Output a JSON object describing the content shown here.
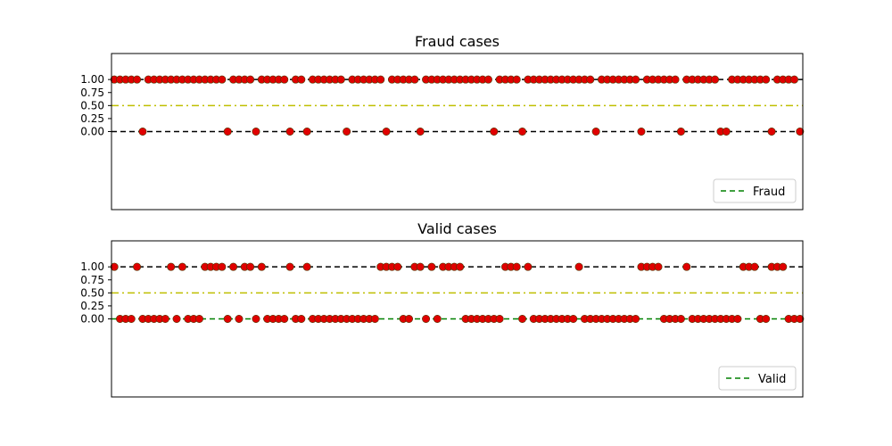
{
  "chart_data": [
    {
      "type": "scatter",
      "title": "Fraud cases",
      "xlabel": "",
      "ylabel": "",
      "ylim": [
        -1.5,
        1.5
      ],
      "xlim": [
        0,
        120
      ],
      "x_ticks_visible": false,
      "yticks": [
        "0.00",
        "0.25",
        "0.50",
        "0.75",
        "1.00"
      ],
      "ytick_values": [
        0,
        0.25,
        0.5,
        0.75,
        1
      ],
      "grid": false,
      "legend_location": "lower right",
      "legend": [
        {
          "label": "Fraud",
          "style": "dashed",
          "color": "#008000"
        }
      ],
      "reference_lines": [
        {
          "y": 1,
          "style": "dashed",
          "color": "#000000"
        },
        {
          "y": 0.5,
          "style": "dashdot",
          "color": "#bfbf00"
        },
        {
          "y": 0,
          "style": "dashed",
          "color": "#000000"
        }
      ],
      "truth_line_color": "#008000",
      "marker_color": "#e00000",
      "values": [
        1,
        1,
        1,
        1,
        1,
        0,
        1,
        1,
        1,
        1,
        1,
        1,
        1,
        1,
        1,
        1,
        1,
        1,
        1,
        1,
        0,
        1,
        1,
        1,
        1,
        0,
        1,
        1,
        1,
        1,
        1,
        0,
        1,
        1,
        0,
        1,
        1,
        1,
        1,
        1,
        1,
        0,
        1,
        1,
        1,
        1,
        1,
        1,
        0,
        1,
        1,
        1,
        1,
        1,
        0,
        1,
        1,
        1,
        1,
        1,
        1,
        1,
        1,
        1,
        1,
        1,
        1,
        0,
        1,
        1,
        1,
        1,
        0,
        1,
        1,
        1,
        1,
        1,
        1,
        1,
        1,
        1,
        1,
        1,
        1,
        0,
        1,
        1,
        1,
        1,
        1,
        1,
        1,
        0,
        1,
        1,
        1,
        1,
        1,
        1,
        0,
        1,
        1,
        1,
        1,
        1,
        1,
        0,
        0,
        1,
        1,
        1,
        1,
        1,
        1,
        1,
        0,
        1,
        1,
        1,
        1,
        0
      ]
    },
    {
      "type": "scatter",
      "title": "Valid cases",
      "xlabel": "",
      "ylabel": "",
      "ylim": [
        -1.5,
        1.5
      ],
      "xlim": [
        0,
        120
      ],
      "x_ticks_visible": false,
      "yticks": [
        "0.00",
        "0.25",
        "0.50",
        "0.75",
        "1.00"
      ],
      "ytick_values": [
        0,
        0.25,
        0.5,
        0.75,
        1
      ],
      "grid": false,
      "legend_location": "lower right",
      "legend": [
        {
          "label": "Valid",
          "style": "dashed",
          "color": "#008000"
        }
      ],
      "reference_lines": [
        {
          "y": 1,
          "style": "dashed",
          "color": "#000000"
        },
        {
          "y": 0.5,
          "style": "dashdot",
          "color": "#bfbf00"
        },
        {
          "y": 0,
          "style": "dashed",
          "color": "#008000"
        }
      ],
      "truth_line_color": "#008000",
      "marker_color": "#e00000",
      "values": [
        1,
        0,
        0,
        0,
        1,
        0,
        0,
        0,
        0,
        0,
        1,
        0,
        1,
        0,
        0,
        0,
        1,
        1,
        1,
        1,
        0,
        1,
        0,
        1,
        1,
        0,
        1,
        0,
        0,
        0,
        0,
        1,
        0,
        0,
        1,
        0,
        0,
        0,
        0,
        0,
        0,
        0,
        0,
        0,
        0,
        0,
        0,
        1,
        1,
        1,
        1,
        0,
        0,
        1,
        1,
        0,
        1,
        0,
        1,
        1,
        1,
        1,
        0,
        0,
        0,
        0,
        0,
        0,
        0,
        1,
        1,
        1,
        0,
        1,
        0,
        0,
        0,
        0,
        0,
        0,
        0,
        0,
        1,
        0,
        0,
        0,
        0,
        0,
        0,
        0,
        0,
        0,
        0,
        1,
        1,
        1,
        1,
        0,
        0,
        0,
        0,
        1,
        0,
        0,
        0,
        0,
        0,
        0,
        0,
        0,
        0,
        1,
        1,
        1,
        0,
        0,
        1,
        1,
        1,
        0,
        0,
        0
      ]
    }
  ]
}
